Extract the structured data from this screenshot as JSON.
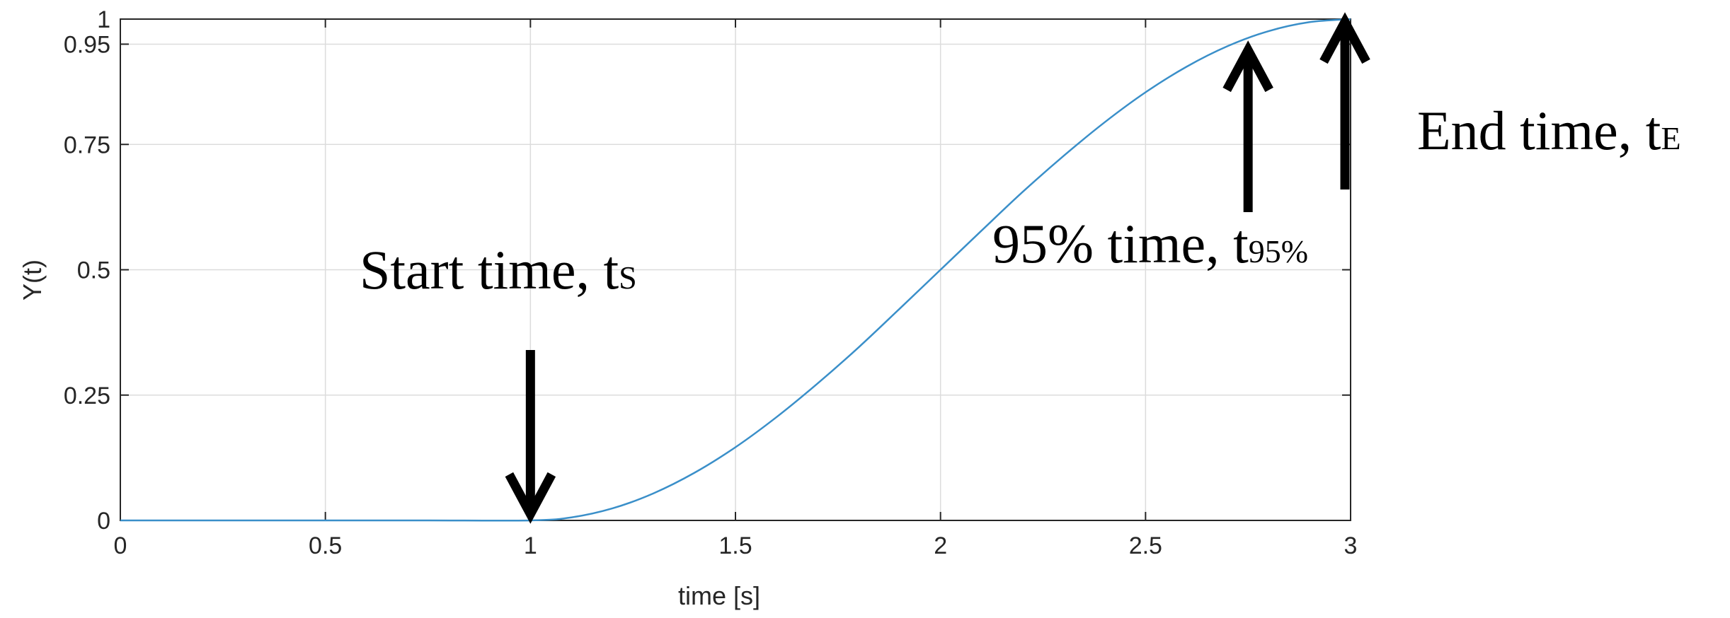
{
  "chart_data": {
    "type": "line",
    "title": "",
    "xlabel": "time [s]",
    "ylabel": "Y(t)",
    "xlim": [
      0,
      3
    ],
    "ylim": [
      0,
      1
    ],
    "grid": true,
    "x_ticks": [
      0,
      0.5,
      1,
      1.5,
      2,
      2.5,
      3
    ],
    "x_tick_labels": [
      "0",
      "0.5",
      "1",
      "1.5",
      "2",
      "2.5",
      "3"
    ],
    "y_ticks": [
      0,
      0.25,
      0.5,
      0.75,
      0.95,
      1
    ],
    "y_tick_labels": [
      "0",
      "0.25",
      "0.5",
      "0.75",
      "0.95",
      "1"
    ],
    "series": [
      {
        "color": "#3a8fc9",
        "x": [
          0,
          0.25,
          0.5,
          0.75,
          1,
          1.1,
          1.2,
          1.3,
          1.4,
          1.5,
          1.6,
          1.7,
          1.8,
          1.9,
          2,
          2.1,
          2.2,
          2.3,
          2.4,
          2.5,
          2.6,
          2.7,
          2.8,
          2.9,
          3
        ],
        "values": [
          0,
          0,
          0,
          0,
          0,
          0.006,
          0.024,
          0.054,
          0.095,
          0.146,
          0.206,
          0.273,
          0.345,
          0.422,
          0.5,
          0.578,
          0.655,
          0.727,
          0.794,
          0.854,
          0.905,
          0.946,
          0.976,
          0.994,
          1
        ]
      }
    ],
    "annotations": [
      {
        "id": "start",
        "text": "Start time, t",
        "subscript": "S",
        "x": 1,
        "direction": "down"
      },
      {
        "id": "t95",
        "text": "95% time, t",
        "subscript": "95%",
        "x": 2.75,
        "direction": "up"
      },
      {
        "id": "end",
        "text": "End time, t",
        "subscript": "E",
        "x": 3,
        "direction": "up"
      }
    ]
  }
}
